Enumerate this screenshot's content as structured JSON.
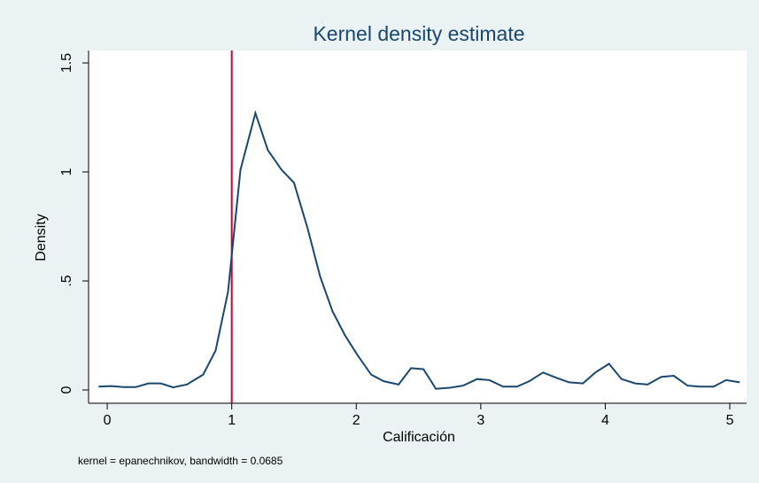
{
  "chart_data": {
    "type": "line",
    "title": "Kernel density estimate",
    "x_label": "Calificación",
    "y_label": "Density",
    "note": "kernel = epanechnikov, bandwidth = 0.0685",
    "x": [
      -0.07,
      0.03,
      0.13,
      0.23,
      0.33,
      0.43,
      0.53,
      0.64,
      0.77,
      0.87,
      0.97,
      1.07,
      1.19,
      1.29,
      1.4,
      1.5,
      1.61,
      1.71,
      1.81,
      1.91,
      2.01,
      2.12,
      2.22,
      2.34,
      2.44,
      2.54,
      2.64,
      2.75,
      2.86,
      2.97,
      3.07,
      3.18,
      3.29,
      3.39,
      3.5,
      3.61,
      3.71,
      3.82,
      3.92,
      4.03,
      4.13,
      4.24,
      4.34,
      4.45,
      4.55,
      4.66,
      4.76,
      4.87,
      4.97,
      5.08
    ],
    "series": [
      {
        "name": "density",
        "color": "#1a476f",
        "values": [
          0.015,
          0.018,
          0.013,
          0.013,
          0.03,
          0.03,
          0.012,
          0.025,
          0.07,
          0.18,
          0.45,
          1.01,
          1.27,
          1.1,
          1.01,
          0.95,
          0.74,
          0.52,
          0.36,
          0.25,
          0.16,
          0.07,
          0.04,
          0.025,
          0.1,
          0.095,
          0.005,
          0.01,
          0.02,
          0.05,
          0.045,
          0.015,
          0.015,
          0.04,
          0.08,
          0.055,
          0.035,
          0.03,
          0.08,
          0.12,
          0.05,
          0.03,
          0.025,
          0.06,
          0.065,
          0.02,
          0.015,
          0.015,
          0.045,
          0.035
        ]
      }
    ],
    "xline": 1,
    "xline_color": "#c10534",
    "xlim": [
      -0.15,
      5.135
    ],
    "ylim": [
      -0.061,
      1.557
    ],
    "xticks": [
      0,
      1,
      2,
      3,
      4,
      5
    ],
    "yticks": [
      0,
      {
        "value": 0.5,
        "label": ".5"
      },
      1,
      1.5
    ],
    "grid": false
  }
}
